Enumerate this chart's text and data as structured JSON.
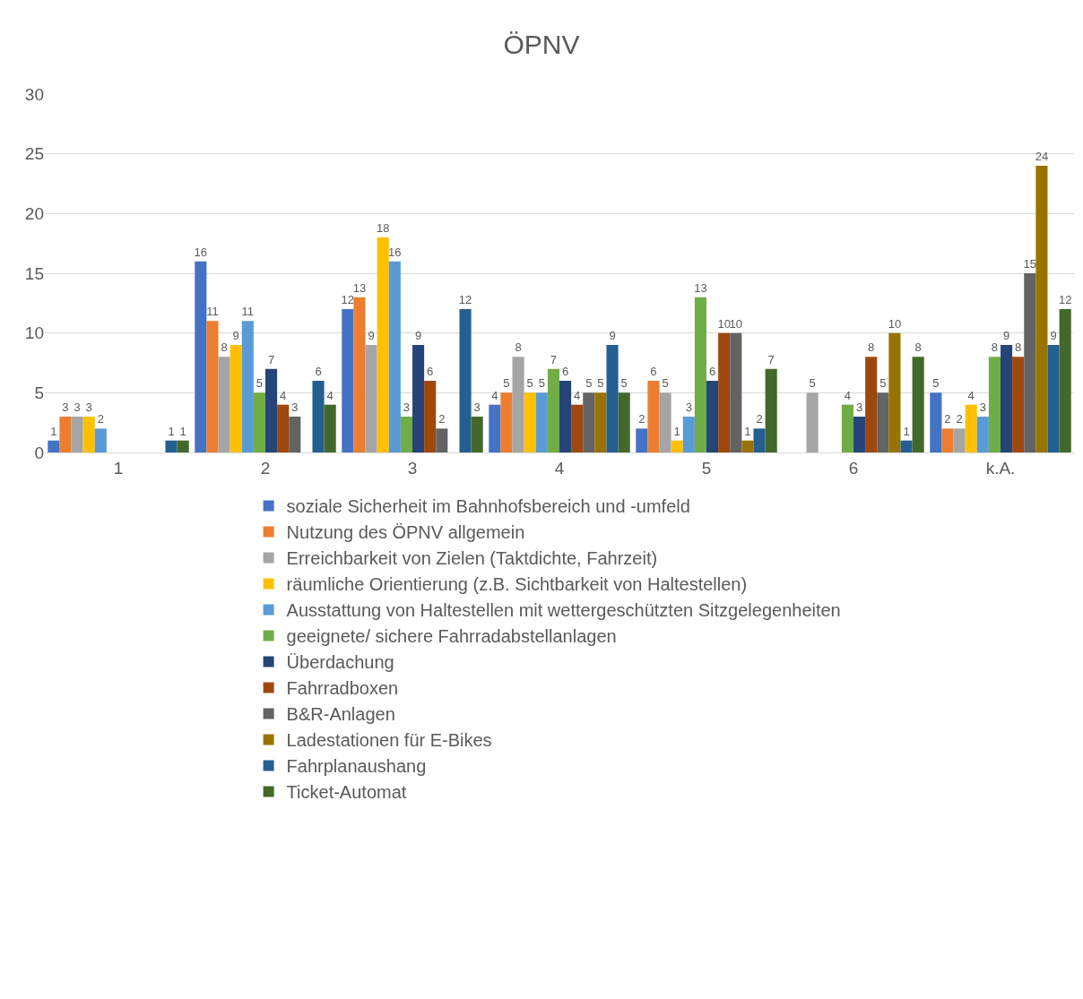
{
  "chart_data": {
    "type": "bar",
    "title": "ÖPNV",
    "categories": [
      "1",
      "2",
      "3",
      "4",
      "5",
      "6",
      "k.A."
    ],
    "series": [
      {
        "name": "soziale Sicherheit im Bahnhofsbereich und -umfeld",
        "color": "#4472c4",
        "values": [
          1,
          16,
          12,
          4,
          2,
          null,
          5
        ]
      },
      {
        "name": "Nutzung des ÖPNV allgemein",
        "color": "#ed7d31",
        "values": [
          3,
          11,
          13,
          5,
          6,
          null,
          2
        ]
      },
      {
        "name": "Erreichbarkeit von Zielen (Taktdichte, Fahrzeit)",
        "color": "#a5a5a5",
        "values": [
          3,
          8,
          9,
          8,
          5,
          5,
          2
        ]
      },
      {
        "name": "räumliche Orientierung (z.B. Sichtbarkeit von Haltestellen)",
        "color": "#ffc000",
        "values": [
          3,
          9,
          18,
          5,
          1,
          null,
          4
        ]
      },
      {
        "name": "Ausstattung von Haltestellen mit wettergeschützten Sitzgelegenheiten",
        "color": "#5b9bd5",
        "values": [
          2,
          11,
          16,
          5,
          3,
          null,
          3
        ]
      },
      {
        "name": "geeignete/ sichere Fahrradabstellanlagen",
        "color": "#70ad47",
        "values": [
          null,
          5,
          3,
          7,
          13,
          4,
          8
        ]
      },
      {
        "name": "Überdachung",
        "color": "#264478",
        "values": [
          null,
          7,
          9,
          6,
          6,
          3,
          9
        ]
      },
      {
        "name": "Fahrradboxen",
        "color": "#9e480e",
        "values": [
          null,
          4,
          6,
          4,
          10,
          8,
          8
        ]
      },
      {
        "name": "B&R-Anlagen",
        "color": "#636363",
        "values": [
          null,
          3,
          2,
          5,
          10,
          5,
          15
        ]
      },
      {
        "name": "Ladestationen für E-Bikes",
        "color": "#997300",
        "values": [
          null,
          null,
          null,
          5,
          1,
          10,
          24
        ]
      },
      {
        "name": "Fahrplanaushang",
        "color": "#255e91",
        "values": [
          1,
          6,
          12,
          9,
          2,
          1,
          9
        ]
      },
      {
        "name": "Ticket-Automat",
        "color": "#43682b",
        "values": [
          1,
          4,
          3,
          5,
          7,
          8,
          12
        ]
      }
    ],
    "ylim": [
      0,
      30
    ],
    "yticks": [
      0,
      5,
      10,
      15,
      20,
      25,
      30
    ],
    "grid": "y",
    "legend": "bottom",
    "data_labels": true
  }
}
